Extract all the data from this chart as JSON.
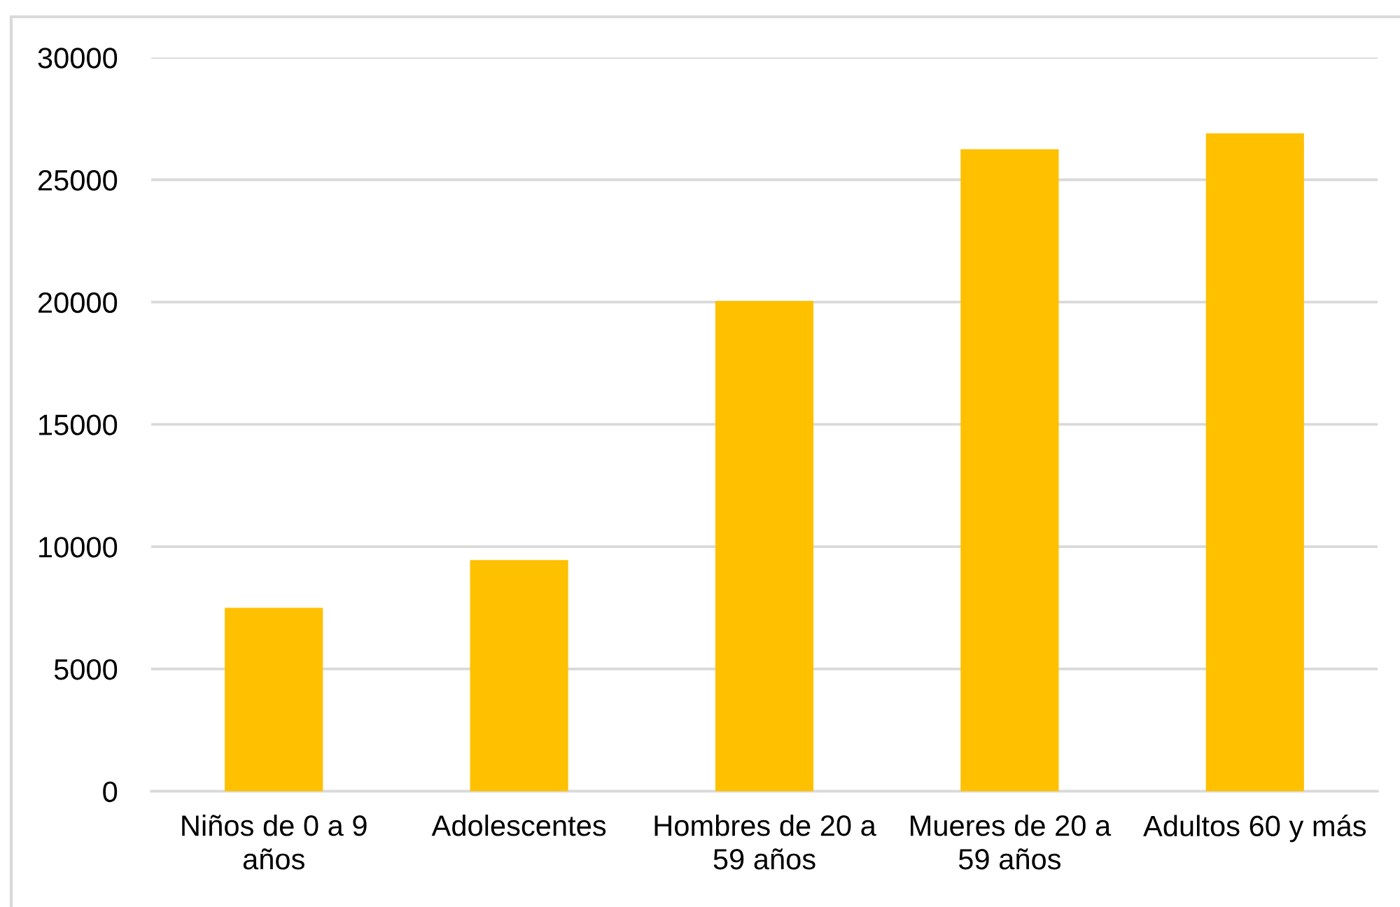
{
  "chart_data": {
    "type": "bar",
    "categories": [
      "Niños de 0 a 9 años",
      "Adolescentes",
      "Hombres de 20 a 59 años",
      "Mueres de 20 a 59 años",
      "Adultos 60 y más"
    ],
    "values": [
      7500,
      9450,
      20050,
      26250,
      26900
    ],
    "color": "#ffc000",
    "ylim": [
      0,
      30000
    ],
    "yticks": [
      0,
      5000,
      10000,
      15000,
      20000,
      25000,
      30000
    ],
    "grid": "y"
  }
}
